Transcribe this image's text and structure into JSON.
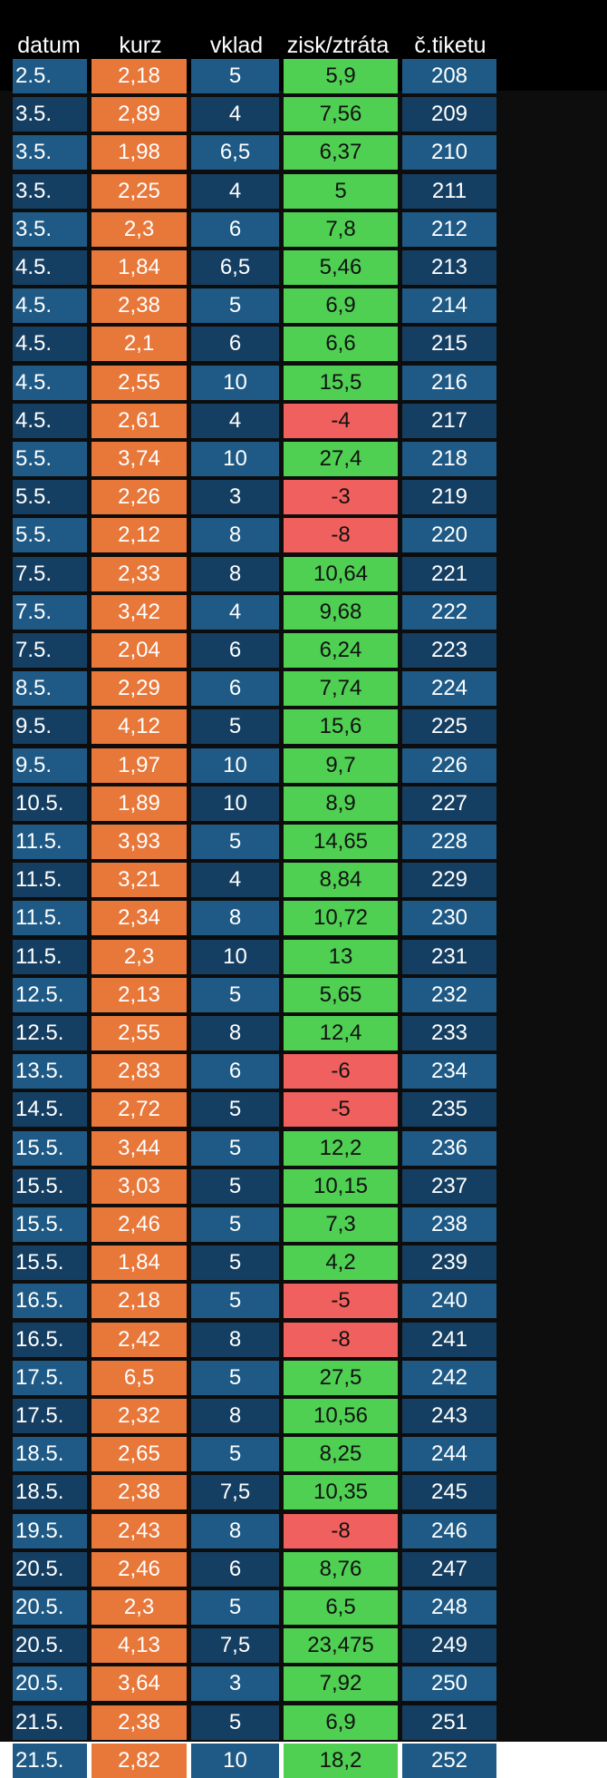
{
  "colors": {
    "background": "#000000",
    "row_blue_light": "#1e5a85",
    "row_blue_dark": "#153f62",
    "kurz_orange": "#e8773a",
    "profit_green": "#4fd053",
    "loss_red": "#f0605e"
  },
  "headers": [
    "datum",
    "kurz",
    "vklad",
    "zisk/ztráta",
    "č.tiketu"
  ],
  "rows": [
    {
      "datum": "2.5.",
      "kurz": "2,18",
      "vklad": "5",
      "zisk": "5,9",
      "tiket": "208",
      "result": "win"
    },
    {
      "datum": "3.5.",
      "kurz": "2,89",
      "vklad": "4",
      "zisk": "7,56",
      "tiket": "209",
      "result": "win"
    },
    {
      "datum": "3.5.",
      "kurz": "1,98",
      "vklad": "6,5",
      "zisk": "6,37",
      "tiket": "210",
      "result": "win"
    },
    {
      "datum": "3.5.",
      "kurz": "2,25",
      "vklad": "4",
      "zisk": "5",
      "tiket": "211",
      "result": "win"
    },
    {
      "datum": "3.5.",
      "kurz": "2,3",
      "vklad": "6",
      "zisk": "7,8",
      "tiket": "212",
      "result": "win"
    },
    {
      "datum": "4.5.",
      "kurz": "1,84",
      "vklad": "6,5",
      "zisk": "5,46",
      "tiket": "213",
      "result": "win"
    },
    {
      "datum": "4.5.",
      "kurz": "2,38",
      "vklad": "5",
      "zisk": "6,9",
      "tiket": "214",
      "result": "win"
    },
    {
      "datum": "4.5.",
      "kurz": "2,1",
      "vklad": "6",
      "zisk": "6,6",
      "tiket": "215",
      "result": "win"
    },
    {
      "datum": "4.5.",
      "kurz": "2,55",
      "vklad": "10",
      "zisk": "15,5",
      "tiket": "216",
      "result": "win"
    },
    {
      "datum": "4.5.",
      "kurz": "2,61",
      "vklad": "4",
      "zisk": "-4",
      "tiket": "217",
      "result": "loss"
    },
    {
      "datum": "5.5.",
      "kurz": "3,74",
      "vklad": "10",
      "zisk": "27,4",
      "tiket": "218",
      "result": "win"
    },
    {
      "datum": "5.5.",
      "kurz": "2,26",
      "vklad": "3",
      "zisk": "-3",
      "tiket": "219",
      "result": "loss"
    },
    {
      "datum": "5.5.",
      "kurz": "2,12",
      "vklad": "8",
      "zisk": "-8",
      "tiket": "220",
      "result": "loss"
    },
    {
      "datum": "7.5.",
      "kurz": "2,33",
      "vklad": "8",
      "zisk": "10,64",
      "tiket": "221",
      "result": "win"
    },
    {
      "datum": "7.5.",
      "kurz": "3,42",
      "vklad": "4",
      "zisk": "9,68",
      "tiket": "222",
      "result": "win"
    },
    {
      "datum": "7.5.",
      "kurz": "2,04",
      "vklad": "6",
      "zisk": "6,24",
      "tiket": "223",
      "result": "win"
    },
    {
      "datum": "8.5.",
      "kurz": "2,29",
      "vklad": "6",
      "zisk": "7,74",
      "tiket": "224",
      "result": "win"
    },
    {
      "datum": "9.5.",
      "kurz": "4,12",
      "vklad": "5",
      "zisk": "15,6",
      "tiket": "225",
      "result": "win"
    },
    {
      "datum": "9.5.",
      "kurz": "1,97",
      "vklad": "10",
      "zisk": "9,7",
      "tiket": "226",
      "result": "win"
    },
    {
      "datum": "10.5.",
      "kurz": "1,89",
      "vklad": "10",
      "zisk": "8,9",
      "tiket": "227",
      "result": "win"
    },
    {
      "datum": "11.5.",
      "kurz": "3,93",
      "vklad": "5",
      "zisk": "14,65",
      "tiket": "228",
      "result": "win"
    },
    {
      "datum": "11.5.",
      "kurz": "3,21",
      "vklad": "4",
      "zisk": "8,84",
      "tiket": "229",
      "result": "win"
    },
    {
      "datum": "11.5.",
      "kurz": "2,34",
      "vklad": "8",
      "zisk": "10,72",
      "tiket": "230",
      "result": "win"
    },
    {
      "datum": "11.5.",
      "kurz": "2,3",
      "vklad": "10",
      "zisk": "13",
      "tiket": "231",
      "result": "win"
    },
    {
      "datum": "12.5.",
      "kurz": "2,13",
      "vklad": "5",
      "zisk": "5,65",
      "tiket": "232",
      "result": "win"
    },
    {
      "datum": "12.5.",
      "kurz": "2,55",
      "vklad": "8",
      "zisk": "12,4",
      "tiket": "233",
      "result": "win"
    },
    {
      "datum": "13.5.",
      "kurz": "2,83",
      "vklad": "6",
      "zisk": "-6",
      "tiket": "234",
      "result": "loss"
    },
    {
      "datum": "14.5.",
      "kurz": "2,72",
      "vklad": "5",
      "zisk": "-5",
      "tiket": "235",
      "result": "loss"
    },
    {
      "datum": "15.5.",
      "kurz": "3,44",
      "vklad": "5",
      "zisk": "12,2",
      "tiket": "236",
      "result": "win"
    },
    {
      "datum": "15.5.",
      "kurz": "3,03",
      "vklad": "5",
      "zisk": "10,15",
      "tiket": "237",
      "result": "win"
    },
    {
      "datum": "15.5.",
      "kurz": "2,46",
      "vklad": "5",
      "zisk": "7,3",
      "tiket": "238",
      "result": "win"
    },
    {
      "datum": "15.5.",
      "kurz": "1,84",
      "vklad": "5",
      "zisk": "4,2",
      "tiket": "239",
      "result": "win"
    },
    {
      "datum": "16.5.",
      "kurz": "2,18",
      "vklad": "5",
      "zisk": "-5",
      "tiket": "240",
      "result": "loss"
    },
    {
      "datum": "16.5.",
      "kurz": "2,42",
      "vklad": "8",
      "zisk": "-8",
      "tiket": "241",
      "result": "loss"
    },
    {
      "datum": "17.5.",
      "kurz": "6,5",
      "vklad": "5",
      "zisk": "27,5",
      "tiket": "242",
      "result": "win"
    },
    {
      "datum": "17.5.",
      "kurz": "2,32",
      "vklad": "8",
      "zisk": "10,56",
      "tiket": "243",
      "result": "win"
    },
    {
      "datum": "18.5.",
      "kurz": "2,65",
      "vklad": "5",
      "zisk": "8,25",
      "tiket": "244",
      "result": "win"
    },
    {
      "datum": "18.5.",
      "kurz": "2,38",
      "vklad": "7,5",
      "zisk": "10,35",
      "tiket": "245",
      "result": "win"
    },
    {
      "datum": "19.5.",
      "kurz": "2,43",
      "vklad": "8",
      "zisk": "-8",
      "tiket": "246",
      "result": "loss"
    },
    {
      "datum": "20.5.",
      "kurz": "2,46",
      "vklad": "6",
      "zisk": "8,76",
      "tiket": "247",
      "result": "win"
    },
    {
      "datum": "20.5.",
      "kurz": "2,3",
      "vklad": "5",
      "zisk": "6,5",
      "tiket": "248",
      "result": "win"
    },
    {
      "datum": "20.5.",
      "kurz": "4,13",
      "vklad": "7,5",
      "zisk": "23,475",
      "tiket": "249",
      "result": "win"
    },
    {
      "datum": "20.5.",
      "kurz": "3,64",
      "vklad": "3",
      "zisk": "7,92",
      "tiket": "250",
      "result": "win"
    },
    {
      "datum": "21.5.",
      "kurz": "2,38",
      "vklad": "5",
      "zisk": "6,9",
      "tiket": "251",
      "result": "win"
    },
    {
      "datum": "21.5.",
      "kurz": "2,82",
      "vklad": "10",
      "zisk": "18,2",
      "tiket": "252",
      "result": "win"
    }
  ]
}
